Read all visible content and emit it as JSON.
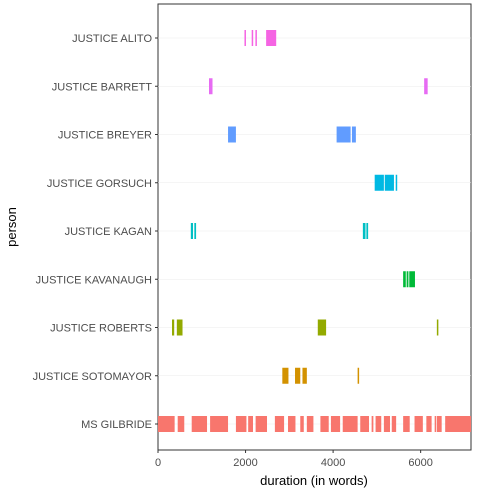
{
  "chart_data": {
    "type": "timeline",
    "xlabel": "duration (in words)",
    "ylabel": "person",
    "xlim": [
      0,
      7150
    ],
    "x_ticks": [
      0,
      2000,
      4000,
      6000
    ],
    "grid": true,
    "legend": "none",
    "series": [
      {
        "name": "JUSTICE ALITO",
        "color": "#F564E3",
        "segments": [
          [
            1975,
            1995
          ],
          [
            2140,
            2165
          ],
          [
            2225,
            2245
          ],
          [
            2470,
            2700
          ]
        ]
      },
      {
        "name": "JUSTICE BARRETT",
        "color": "#E76BF3",
        "segments": [
          [
            1165,
            1245
          ],
          [
            6080,
            6160
          ]
        ]
      },
      {
        "name": "JUSTICE BREYER",
        "color": "#619CFF",
        "segments": [
          [
            1600,
            1780
          ],
          [
            4080,
            4400
          ],
          [
            4430,
            4520
          ]
        ]
      },
      {
        "name": "JUSTICE GORSUCH",
        "color": "#00B9E3",
        "segments": [
          [
            4950,
            5160
          ],
          [
            5180,
            5390
          ],
          [
            5430,
            5450
          ]
        ]
      },
      {
        "name": "JUSTICE KAGAN",
        "color": "#00BFC4",
        "segments": [
          [
            750,
            800
          ],
          [
            830,
            870
          ],
          [
            4680,
            4740
          ],
          [
            4760,
            4800
          ]
        ]
      },
      {
        "name": "JUSTICE KAVANAUGH",
        "color": "#00BA38",
        "segments": [
          [
            5600,
            5660
          ],
          [
            5680,
            5720
          ],
          [
            5740,
            5870
          ]
        ]
      },
      {
        "name": "JUSTICE ROBERTS",
        "color": "#93AA00",
        "segments": [
          [
            320,
            370
          ],
          [
            430,
            560
          ],
          [
            3650,
            3840
          ],
          [
            6370,
            6390
          ]
        ]
      },
      {
        "name": "JUSTICE SOTOMAYOR",
        "color": "#D39200",
        "segments": [
          [
            2840,
            2980
          ],
          [
            3130,
            3250
          ],
          [
            3300,
            3400
          ],
          [
            4560,
            4580
          ]
        ]
      },
      {
        "name": "MS GILBRIDE",
        "color": "#F8766D",
        "segments": [
          [
            0,
            380
          ],
          [
            450,
            600
          ],
          [
            770,
            1120
          ],
          [
            1190,
            1600
          ],
          [
            1780,
            2020
          ],
          [
            2060,
            2170
          ],
          [
            2230,
            2490
          ],
          [
            2670,
            2880
          ],
          [
            2970,
            3140
          ],
          [
            3250,
            3330
          ],
          [
            3400,
            3550
          ],
          [
            3710,
            3900
          ],
          [
            3950,
            4160
          ],
          [
            4220,
            4560
          ],
          [
            4620,
            4820
          ],
          [
            4880,
            4920
          ],
          [
            4970,
            5100
          ],
          [
            5160,
            5300
          ],
          [
            5340,
            5440
          ],
          [
            5600,
            5750
          ],
          [
            5860,
            6050
          ],
          [
            6130,
            6250
          ],
          [
            6320,
            6330
          ],
          [
            6370,
            6480
          ],
          [
            6560,
            7150
          ]
        ]
      }
    ]
  }
}
